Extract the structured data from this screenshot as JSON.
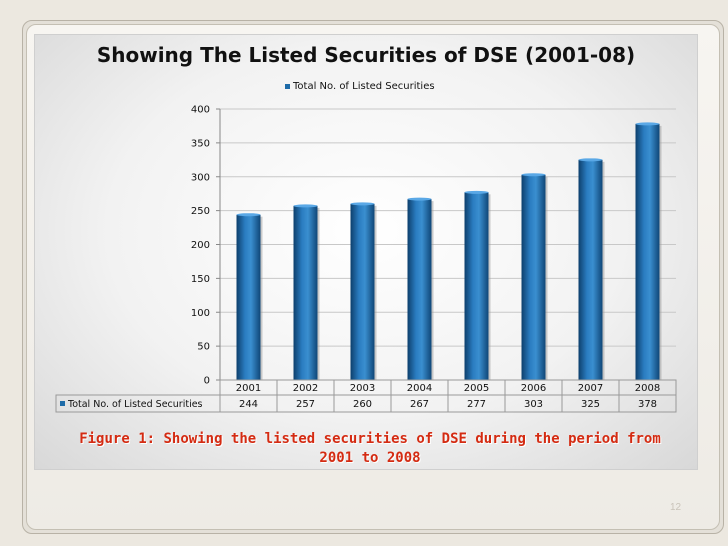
{
  "chart_data": {
    "type": "bar",
    "title": "Showing The Listed Securities of DSE (2001-08)",
    "categories": [
      "2001",
      "2002",
      "2003",
      "2004",
      "2005",
      "2006",
      "2007",
      "2008"
    ],
    "series": [
      {
        "name": "Total No. of Listed Securities",
        "values": [
          244,
          257,
          260,
          267,
          277,
          303,
          325,
          378
        ]
      }
    ],
    "ylim": [
      0,
      400
    ],
    "yticks": [
      "0",
      "50",
      "100",
      "150",
      "200",
      "250",
      "300",
      "350",
      "400"
    ],
    "data_table": true,
    "legend_position": "top",
    "xlabel": "",
    "ylabel": ""
  },
  "caption": {
    "line1": "Figure 1: Showing the listed securities of DSE during the period from",
    "line2": "2001 to 2008"
  },
  "slide": {
    "page_number": "12"
  },
  "colors": {
    "bar": "#1e6ba8",
    "caption": "#d42b12"
  }
}
